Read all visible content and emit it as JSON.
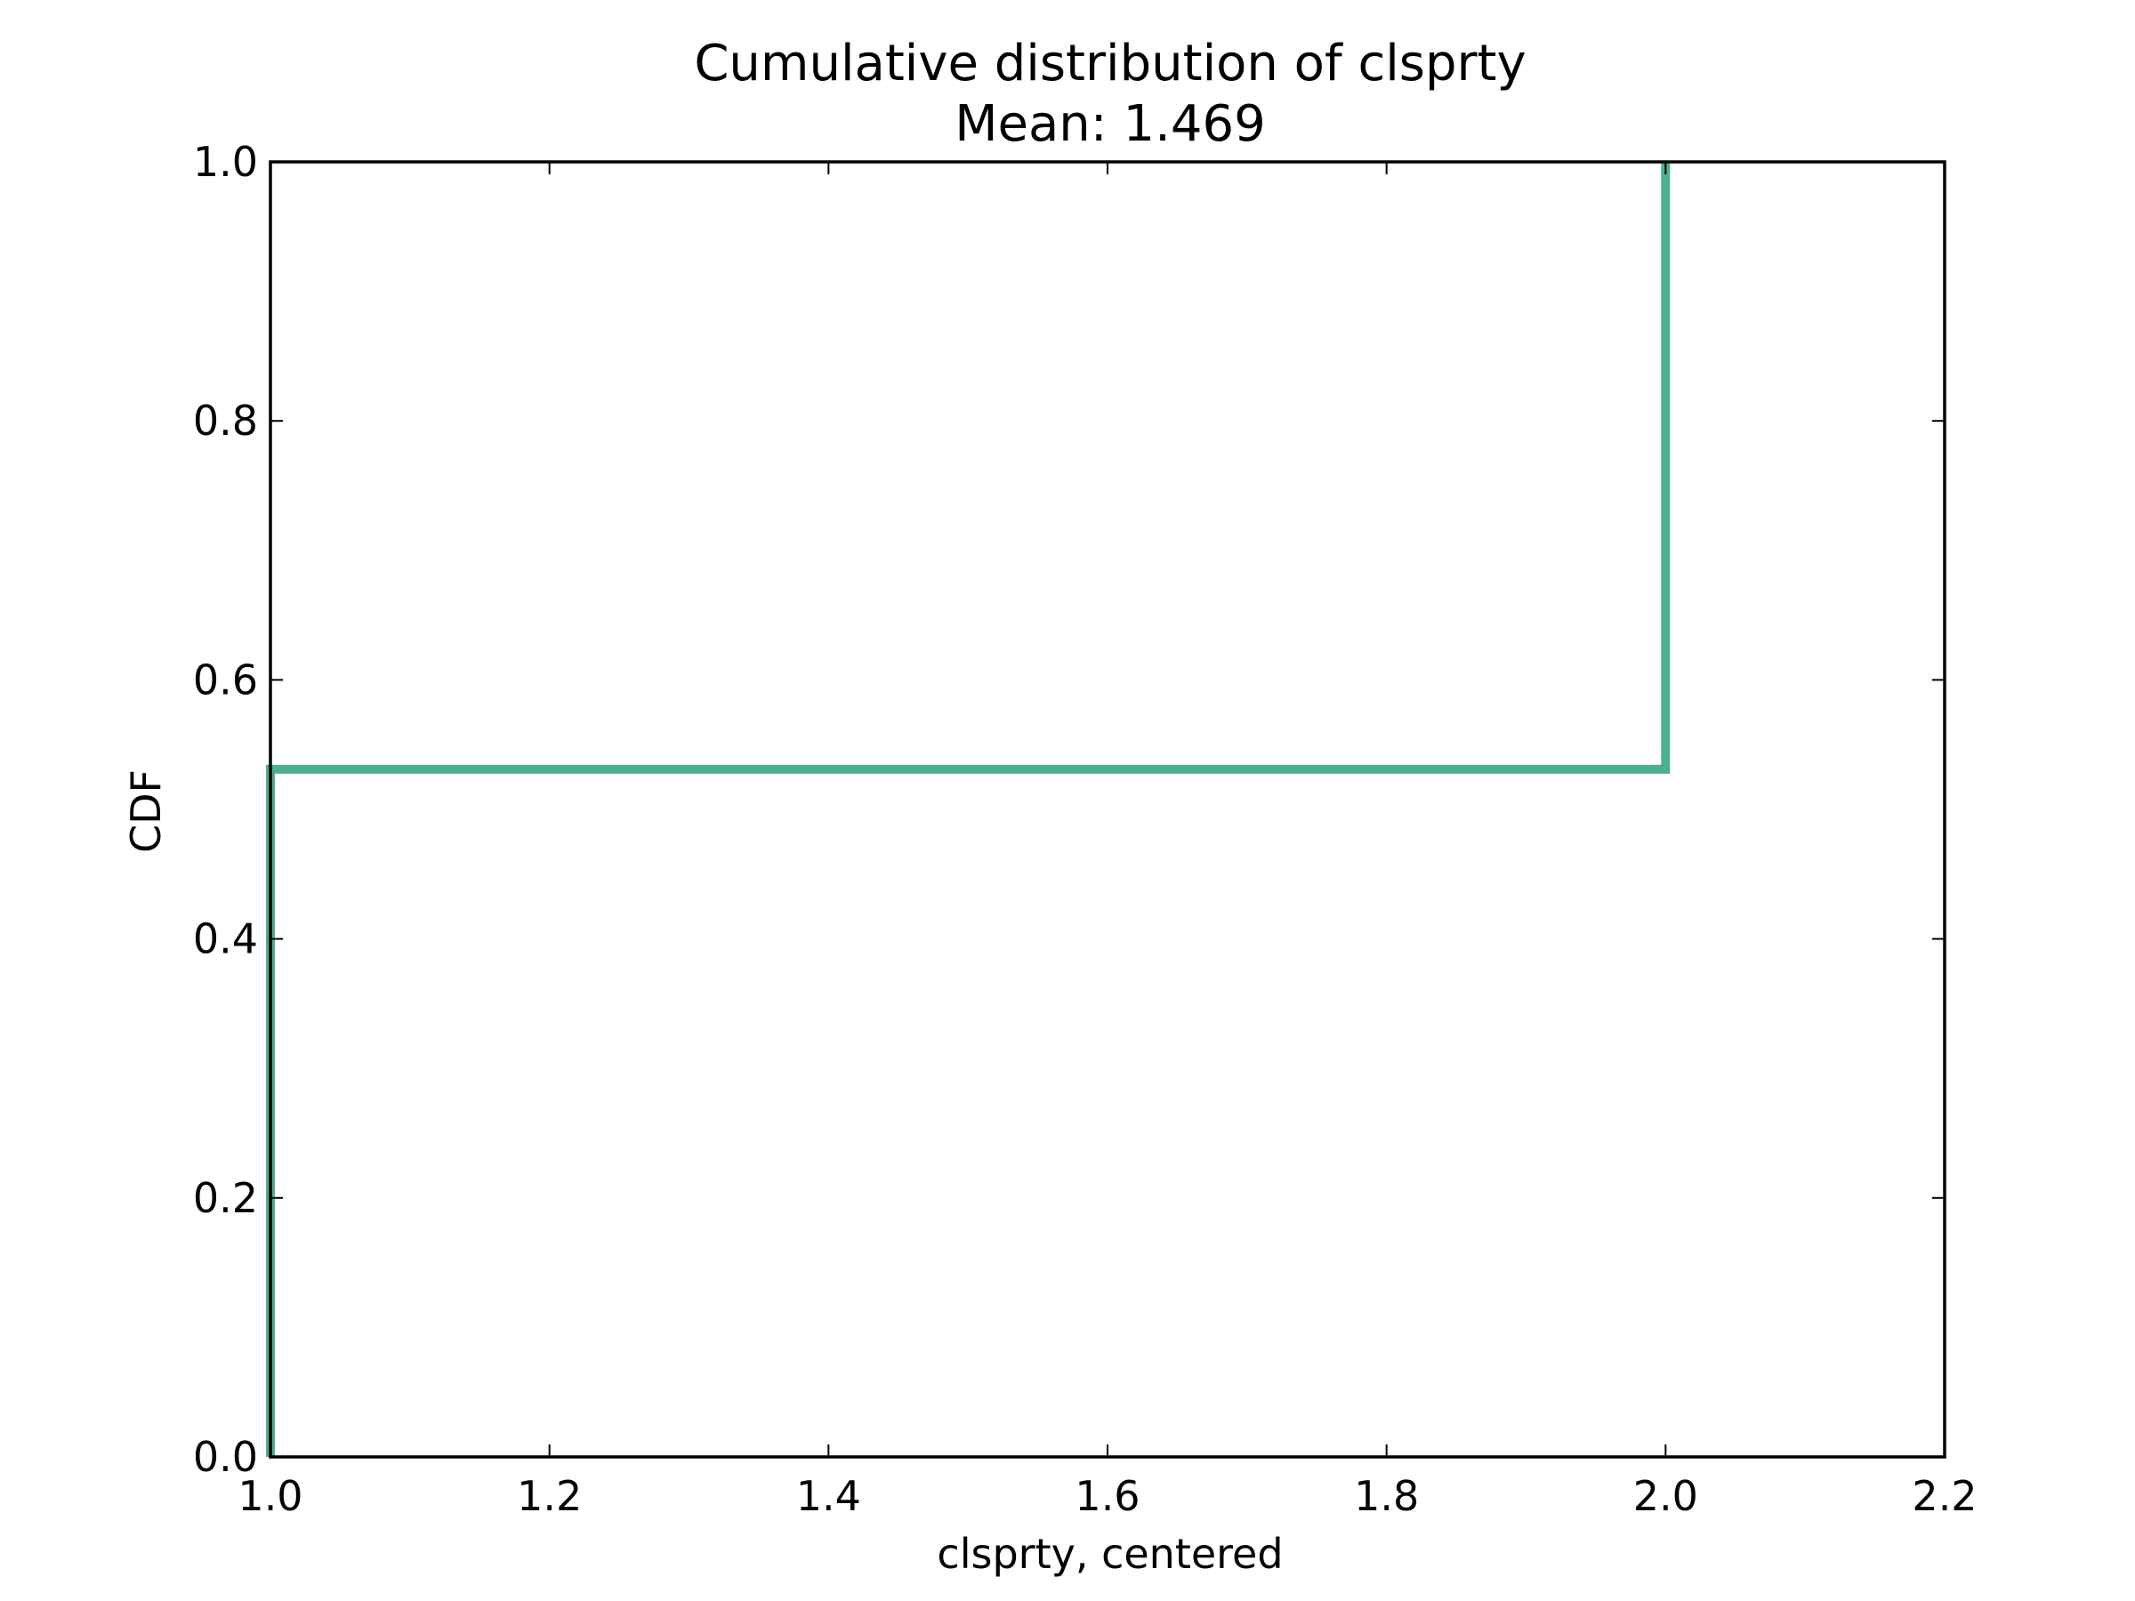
{
  "chart_data": {
    "type": "line",
    "title": "Cumulative distribution of clsprty",
    "subtitle": "Mean: 1.469",
    "xlabel": "clsprty, centered",
    "ylabel": "CDF",
    "xlim": [
      1.0,
      2.2
    ],
    "ylim": [
      0.0,
      1.0
    ],
    "x_ticks": [
      "1.0",
      "1.2",
      "1.4",
      "1.6",
      "1.8",
      "2.0",
      "2.2"
    ],
    "y_ticks": [
      "0.0",
      "0.2",
      "0.4",
      "0.6",
      "0.8",
      "1.0"
    ],
    "grid": false,
    "line_color": "#4daf91",
    "series": [
      {
        "step": "post",
        "x": [
          1.0,
          1.0,
          2.0,
          2.0
        ],
        "y": [
          0.0,
          0.531,
          0.531,
          1.0
        ]
      }
    ]
  }
}
